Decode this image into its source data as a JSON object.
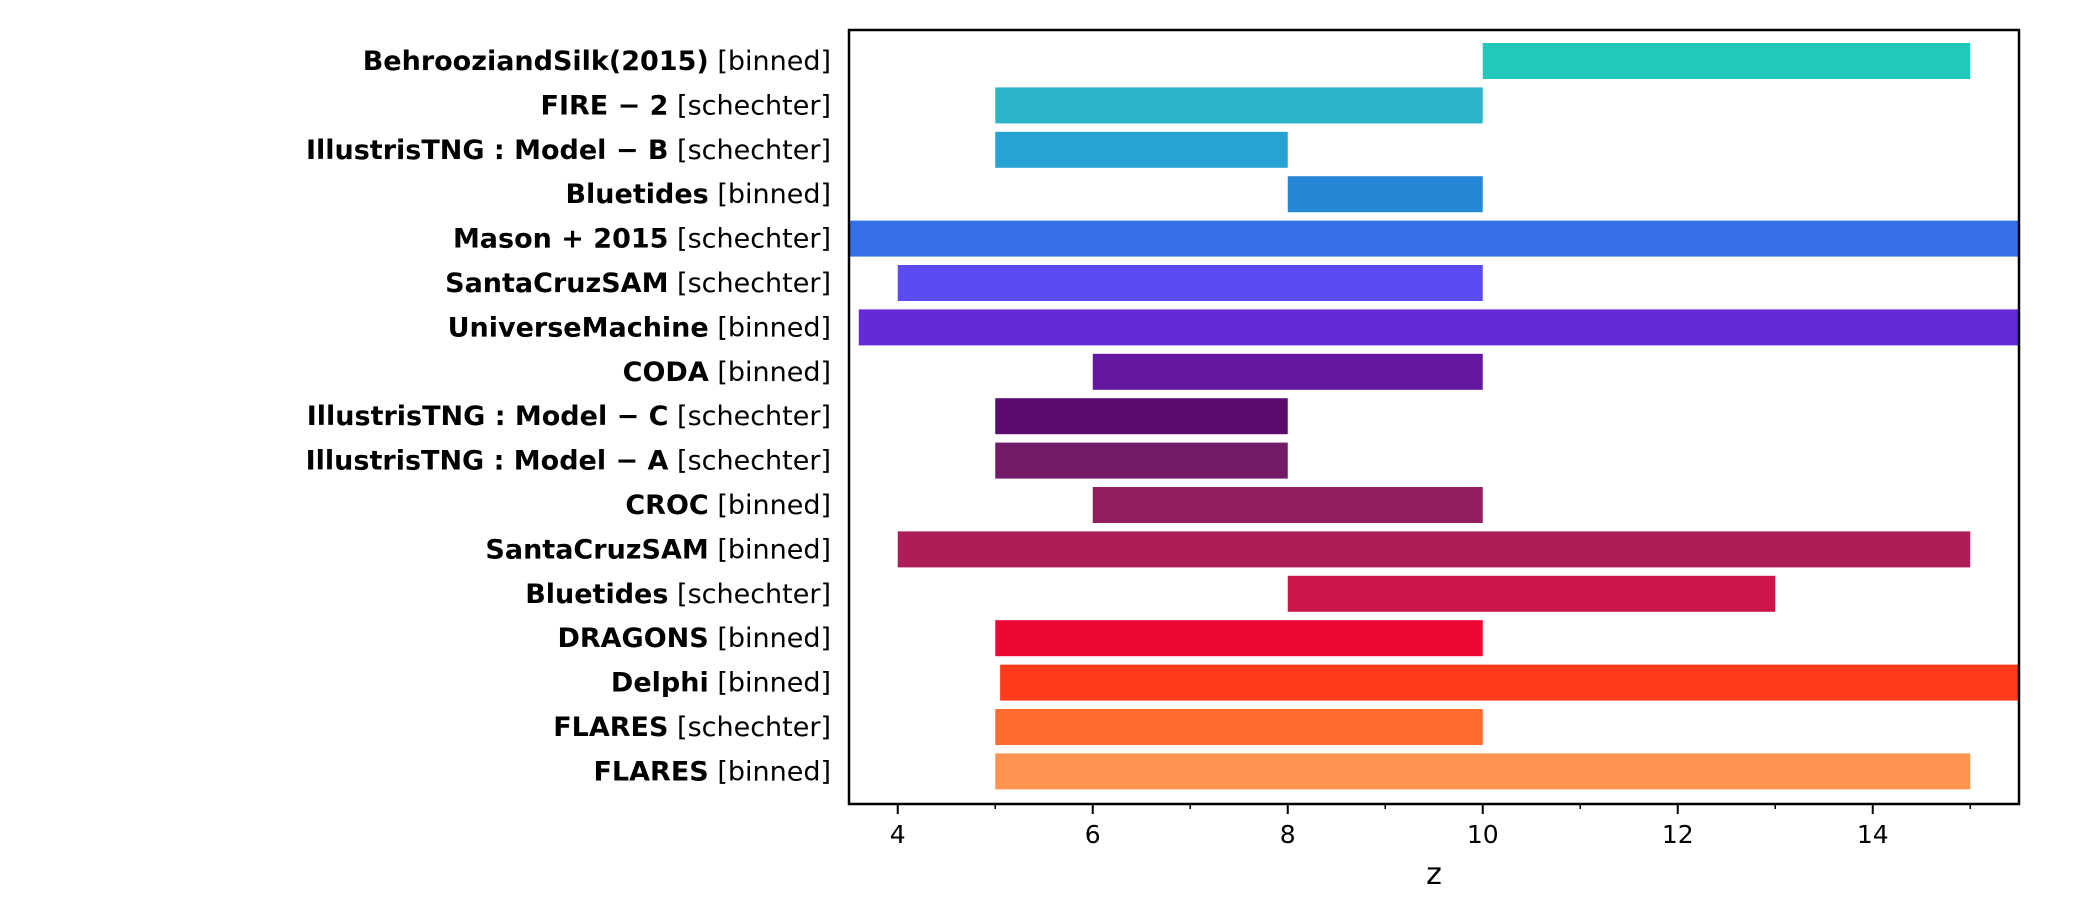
{
  "chart_data": {
    "type": "bar",
    "orientation": "horizontal",
    "xlabel": "z",
    "ylabel": "",
    "title": "",
    "xlim": [
      3.5,
      15.5
    ],
    "xticks": [
      4,
      6,
      8,
      10,
      12,
      14
    ],
    "xticks_minor": [
      5,
      7,
      9,
      11,
      13,
      15
    ],
    "grid": false,
    "categories": [
      {
        "name": "BehrooziandSilk(2015)",
        "method": "[binned]",
        "start": 10,
        "end": 15,
        "color": "#20c9bb"
      },
      {
        "name": "FIRE − 2",
        "method": "[schechter]",
        "start": 5,
        "end": 10,
        "color": "#2bb5c8"
      },
      {
        "name": "IllustrisTNG : Model − B",
        "method": "[schechter]",
        "start": 5,
        "end": 8,
        "color": "#28a2d2"
      },
      {
        "name": "Bluetides",
        "method": "[binned]",
        "start": 8,
        "end": 10,
        "color": "#2587d6"
      },
      {
        "name": "Mason + 2015",
        "method": "[schechter]",
        "start": 3.5,
        "end": 15.5,
        "color": "#3570e8"
      },
      {
        "name": "SantaCruzSAM",
        "method": "[schechter]",
        "start": 4,
        "end": 10,
        "color": "#5a4cf2"
      },
      {
        "name": "UniverseMachine",
        "method": "[binned]",
        "start": 3.6,
        "end": 15.5,
        "color": "#652ad8"
      },
      {
        "name": "CODA",
        "method": "[binned]",
        "start": 6,
        "end": 10,
        "color": "#63189f"
      },
      {
        "name": "IllustrisTNG : Model − C",
        "method": "[schechter]",
        "start": 5,
        "end": 8,
        "color": "#5a0c6e"
      },
      {
        "name": "IllustrisTNG : Model − A",
        "method": "[schechter]",
        "start": 5,
        "end": 8,
        "color": "#731a69"
      },
      {
        "name": "CROC",
        "method": "[binned]",
        "start": 6,
        "end": 10,
        "color": "#921e60"
      },
      {
        "name": "SantaCruzSAM",
        "method": "[binned]",
        "start": 4,
        "end": 15,
        "color": "#ad1d58"
      },
      {
        "name": "Bluetides",
        "method": "[schechter]",
        "start": 8,
        "end": 13,
        "color": "#cc164b"
      },
      {
        "name": "DRAGONS",
        "method": "[binned]",
        "start": 5,
        "end": 10,
        "color": "#ed0734"
      },
      {
        "name": "Delphi",
        "method": "[binned]",
        "start": 5.05,
        "end": 15.5,
        "color": "#ff3b1c"
      },
      {
        "name": "FLARES",
        "method": "[schechter]",
        "start": 5,
        "end": 10,
        "color": "#ff6b2f"
      },
      {
        "name": "FLARES",
        "method": "[binned]",
        "start": 5,
        "end": 15,
        "color": "#ff9350"
      }
    ]
  }
}
